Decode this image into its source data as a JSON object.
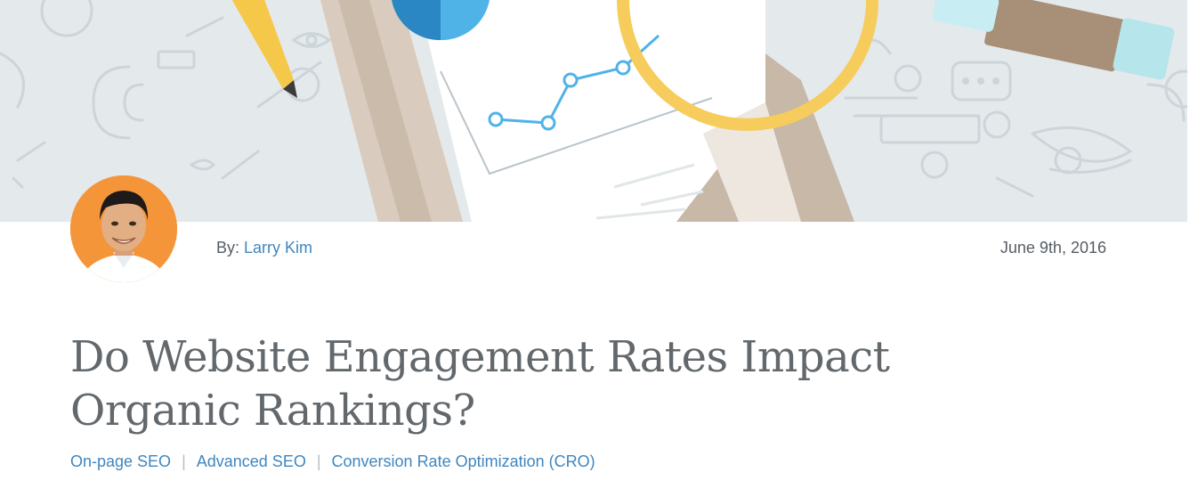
{
  "author": {
    "by_label": "By:",
    "name": "Larry Kim"
  },
  "post": {
    "date": "June 9th, 2016",
    "title": "Do Website Engagement Rates Impact Organic Rankings?"
  },
  "categories": [
    {
      "label": "On-page SEO"
    },
    {
      "label": "Advanced SEO"
    },
    {
      "label": "Conversion Rate Optimization (CRO)"
    }
  ],
  "category_separator": "|",
  "colors": {
    "link": "#3f86bf",
    "text": "#555d63",
    "title": "#62686c",
    "hero_bg": "#e4e9ec",
    "avatar_bg": "#f5953a"
  }
}
